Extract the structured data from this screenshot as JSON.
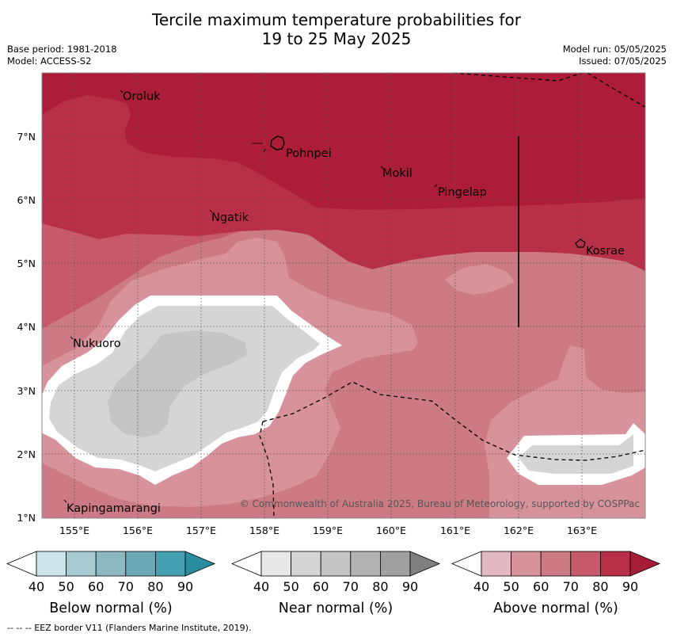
{
  "header": {
    "title_line1": "Tercile maximum temperature probabilities for",
    "title_line2": "19 to 25 May 2025",
    "base_period": "Base period: 1981-2018",
    "model": "Model: ACCESS-S2",
    "model_run": "Model run: 05/05/2025",
    "issued": "Issued: 07/05/2025"
  },
  "map": {
    "lon_ticks": [
      "155°E",
      "156°E",
      "157°E",
      "158°E",
      "159°E",
      "160°E",
      "161°E",
      "162°E",
      "163°E"
    ],
    "lat_ticks": [
      "7°N",
      "6°N",
      "5°N",
      "4°N",
      "3°N",
      "2°N",
      "1°N"
    ],
    "places": [
      {
        "name": "Oroluk"
      },
      {
        "name": "Pohnpei"
      },
      {
        "name": "Mokil"
      },
      {
        "name": "Pingelap"
      },
      {
        "name": "Ngatik"
      },
      {
        "name": "Kosrae"
      },
      {
        "name": "Nukuoro"
      },
      {
        "name": "Kapingamarangi"
      }
    ],
    "copyright": "© Commonwealth of Australia 2025, Bureau of Meteorology, supported by COSPPac"
  },
  "legends": [
    {
      "title": "Below normal (%)",
      "ticks": [
        "40",
        "50",
        "60",
        "70",
        "80",
        "90"
      ],
      "colors": [
        "#ffffff",
        "#cce3e8",
        "#a8cbd1",
        "#8bb8c1",
        "#6aa9b5",
        "#45a0b1",
        "#2a8d9f"
      ]
    },
    {
      "title": "Near normal (%)",
      "ticks": [
        "40",
        "50",
        "60",
        "70",
        "80",
        "90"
      ],
      "colors": [
        "#ffffff",
        "#e8e8e8",
        "#d5d5d5",
        "#c5c5c5",
        "#b2b2b2",
        "#a0a0a0",
        "#7f7f7f"
      ]
    },
    {
      "title": "Above normal (%)",
      "ticks": [
        "40",
        "50",
        "60",
        "70",
        "80",
        "90"
      ],
      "colors": [
        "#ffffff",
        "#e2b9c0",
        "#d8929b",
        "#cc7a85",
        "#c65a6a",
        "#b83048",
        "#a61b35"
      ]
    }
  ],
  "footnote": "--  --  -- EEZ border V11 (Flanders Marine Institute, 2019)."
}
